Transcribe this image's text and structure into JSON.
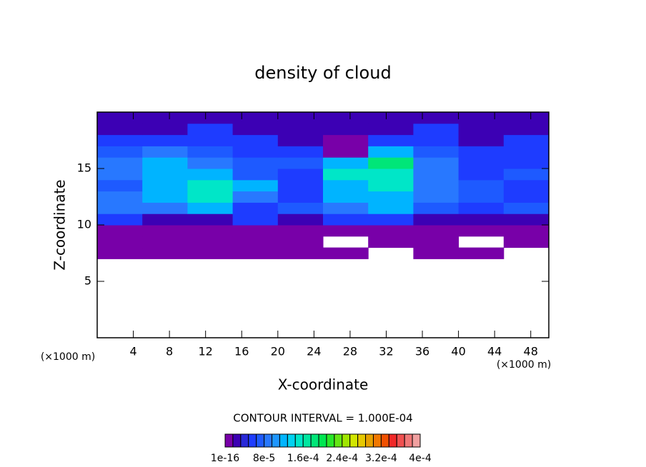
{
  "chart_data": {
    "type": "contour",
    "title": "density of cloud",
    "x_label": "X-coordinate",
    "y_label": "Z-coordinate",
    "x_unit": "(×1000 m)",
    "y_unit": "(×1000 m)",
    "note": "CONTOUR INTERVAL = 1.000E-04",
    "xlim": [
      0,
      50
    ],
    "ylim": [
      0,
      20
    ],
    "xticks": [
      4,
      8,
      12,
      16,
      20,
      24,
      28,
      32,
      36,
      40,
      44,
      48
    ],
    "yticks": [
      5,
      10,
      15
    ],
    "x": [
      2.5,
      7.5,
      12.5,
      17.5,
      22.5,
      27.5,
      32.5,
      37.5,
      42.5,
      47.5
    ],
    "y": [
      7.5,
      8.5,
      9.5,
      10.5,
      11.5,
      12.5,
      13.5,
      14.5,
      15.5,
      16.5,
      17.5,
      18.5,
      19.5
    ],
    "values": [
      [
        1e-05,
        1e-05,
        1e-05,
        1e-05,
        1e-05,
        1e-05,
        null,
        1e-05,
        1e-05,
        null
      ],
      [
        1e-05,
        1e-05,
        1e-05,
        1e-05,
        1e-05,
        null,
        1e-05,
        1e-05,
        null,
        1e-05
      ],
      [
        1e-05,
        1e-05,
        1e-05,
        1e-05,
        1e-05,
        1e-05,
        1e-05,
        1e-05,
        1e-05,
        1e-05
      ],
      [
        5e-05,
        3e-05,
        3e-05,
        5e-05,
        3e-05,
        5e-05,
        5e-05,
        3e-05,
        3e-05,
        3e-05
      ],
      [
        9e-05,
        9e-05,
        0.00012,
        5e-05,
        7e-05,
        9e-05,
        0.00012,
        7e-05,
        5e-05,
        7e-05
      ],
      [
        9e-05,
        0.00012,
        0.00015,
        9e-05,
        5e-05,
        0.00012,
        0.00012,
        9e-05,
        7e-05,
        5e-05
      ],
      [
        7e-05,
        0.00012,
        0.00015,
        0.00012,
        5e-05,
        0.00012,
        0.00015,
        9e-05,
        7e-05,
        5e-05
      ],
      [
        9e-05,
        0.00012,
        0.00012,
        7e-05,
        5e-05,
        0.00015,
        0.00015,
        9e-05,
        5e-05,
        7e-05
      ],
      [
        9e-05,
        0.00012,
        9e-05,
        7e-05,
        7e-05,
        0.00012,
        0.00018,
        9e-05,
        5e-05,
        5e-05
      ],
      [
        7e-05,
        9e-05,
        7e-05,
        5e-05,
        5e-05,
        1e-05,
        0.00012,
        7e-05,
        5e-05,
        5e-05
      ],
      [
        5e-05,
        5e-05,
        5e-05,
        5e-05,
        3e-05,
        1e-05,
        5e-05,
        5e-05,
        3e-05,
        5e-05
      ],
      [
        3e-05,
        3e-05,
        5e-05,
        3e-05,
        3e-05,
        3e-05,
        3e-05,
        5e-05,
        3e-05,
        3e-05
      ],
      [
        3e-05,
        3e-05,
        3e-05,
        3e-05,
        3e-05,
        3e-05,
        3e-05,
        3e-05,
        3e-05,
        3e-05
      ]
    ],
    "clim": [
      0,
      0.0004
    ],
    "colors": [
      "#7800a8",
      "#3c00b4",
      "#2828d8",
      "#1e3cff",
      "#1e5aff",
      "#2878ff",
      "#1e96ff",
      "#00b4ff",
      "#00d2f0",
      "#00e6c8",
      "#00e6a0",
      "#00e678",
      "#00e650",
      "#28e628",
      "#64e614",
      "#a0e600",
      "#d2e600",
      "#e6c800",
      "#e6a000",
      "#f07800",
      "#f05000",
      "#f02828",
      "#f05050",
      "#f07878",
      "#f0a0a0"
    ],
    "cticks": [
      {
        "value": 1e-16,
        "label": "1e-16"
      },
      {
        "value": 8e-05,
        "label": "8e-5"
      },
      {
        "value": 0.00016,
        "label": "1.6e-4"
      },
      {
        "value": 0.00024,
        "label": "2.4e-4"
      },
      {
        "value": 0.00032,
        "label": "3.2e-4"
      },
      {
        "value": 0.0004,
        "label": "4e-4"
      }
    ]
  }
}
